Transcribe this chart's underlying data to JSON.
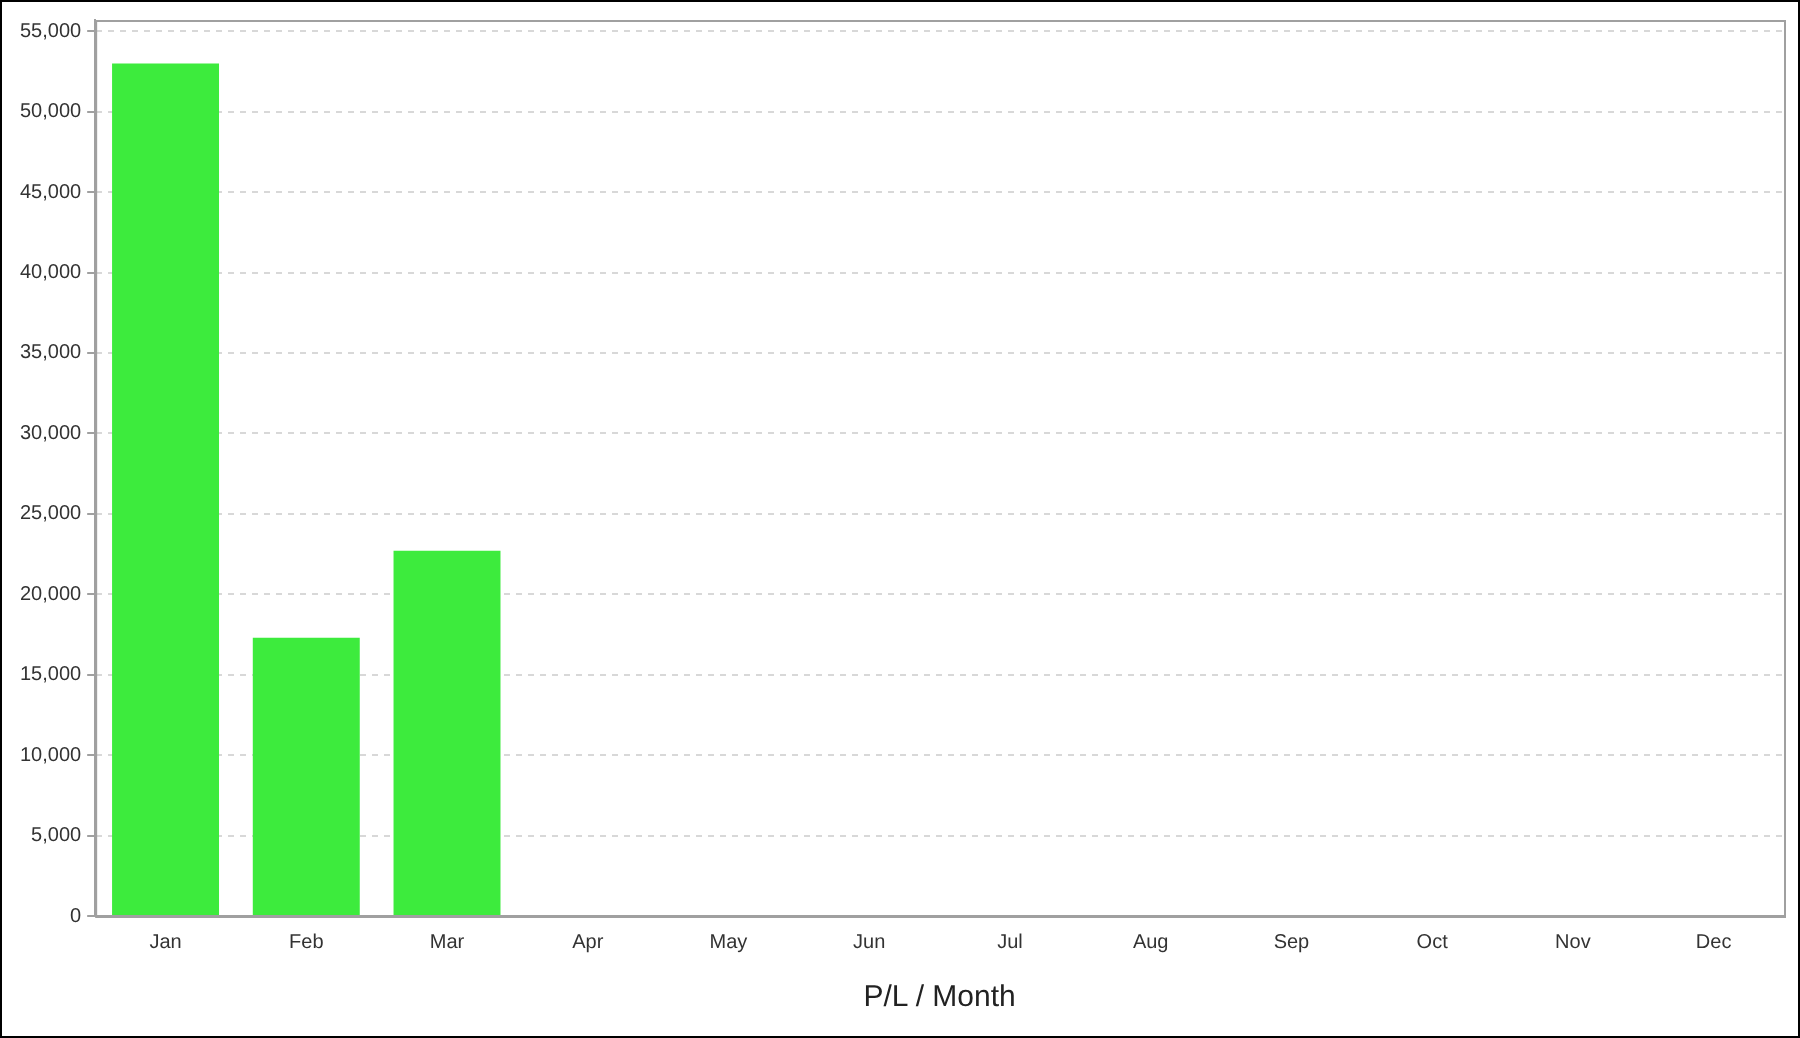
{
  "chart_data": {
    "type": "bar",
    "xlabel": "P/L / Month",
    "categories": [
      "Jan",
      "Feb",
      "Mar",
      "Apr",
      "May",
      "Jun",
      "Jul",
      "Aug",
      "Sep",
      "Oct",
      "Nov",
      "Dec"
    ],
    "values": [
      53000,
      17300,
      22700,
      null,
      null,
      null,
      null,
      null,
      null,
      null,
      null,
      null
    ],
    "color": "#3deb3d",
    "ylim": [
      0,
      55700
    ],
    "yticks": [
      0,
      {
        "value": 5000,
        "label": "5,000"
      },
      {
        "value": 10000,
        "label": "10,000"
      },
      {
        "value": 15000,
        "label": "15,000"
      },
      {
        "value": 20000,
        "label": "20,000"
      },
      {
        "value": 25000,
        "label": "25,000"
      },
      {
        "value": 30000,
        "label": "30,000"
      },
      {
        "value": 35000,
        "label": "35,000"
      },
      {
        "value": 40000,
        "label": "40,000"
      },
      {
        "value": 45000,
        "label": "45,000"
      },
      {
        "value": 50000,
        "label": "50,000"
      },
      {
        "value": 55000,
        "label": "55,000"
      }
    ],
    "grid": "y",
    "legend": false
  }
}
